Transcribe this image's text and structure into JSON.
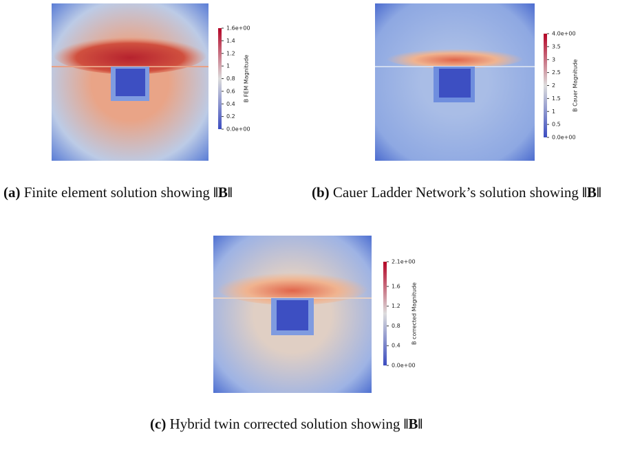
{
  "panels": [
    {
      "label": "(a)",
      "caption": "Finite element solution showing",
      "math": "‖B‖",
      "colorbar": {
        "title": "B FEM Magnitude",
        "lim": [
          0,
          1.6
        ],
        "ticks": [
          {
            "value": 1.6,
            "label": "1.6e+00"
          },
          1.4,
          1.2,
          1,
          0.8,
          0.6,
          0.4,
          0.2,
          {
            "value": 0,
            "label": "0.0e+00"
          }
        ]
      }
    },
    {
      "label": "(b)",
      "caption": "Cauer Ladder Network’s solution showing",
      "math": "‖B‖",
      "colorbar": {
        "title": "B Cauer Magnitude",
        "lim": [
          0,
          4
        ],
        "ticks": [
          {
            "value": 4,
            "label": "4.0e+00"
          },
          3.5,
          3,
          2.5,
          2,
          1.5,
          1,
          0.5,
          {
            "value": 0,
            "label": "0.0e+00"
          }
        ]
      }
    },
    {
      "label": "(c)",
      "caption": "Hybrid twin corrected solution showing",
      "math": "‖B‖",
      "colorbar": {
        "title": "B corrected Magnitude",
        "lim": [
          0,
          2.1
        ],
        "ticks": [
          {
            "value": 2.1,
            "label": "2.1e+00"
          },
          1.6,
          1.2,
          0.8,
          0.4,
          {
            "value": 0,
            "label": "0.0e+00"
          }
        ]
      }
    }
  ]
}
